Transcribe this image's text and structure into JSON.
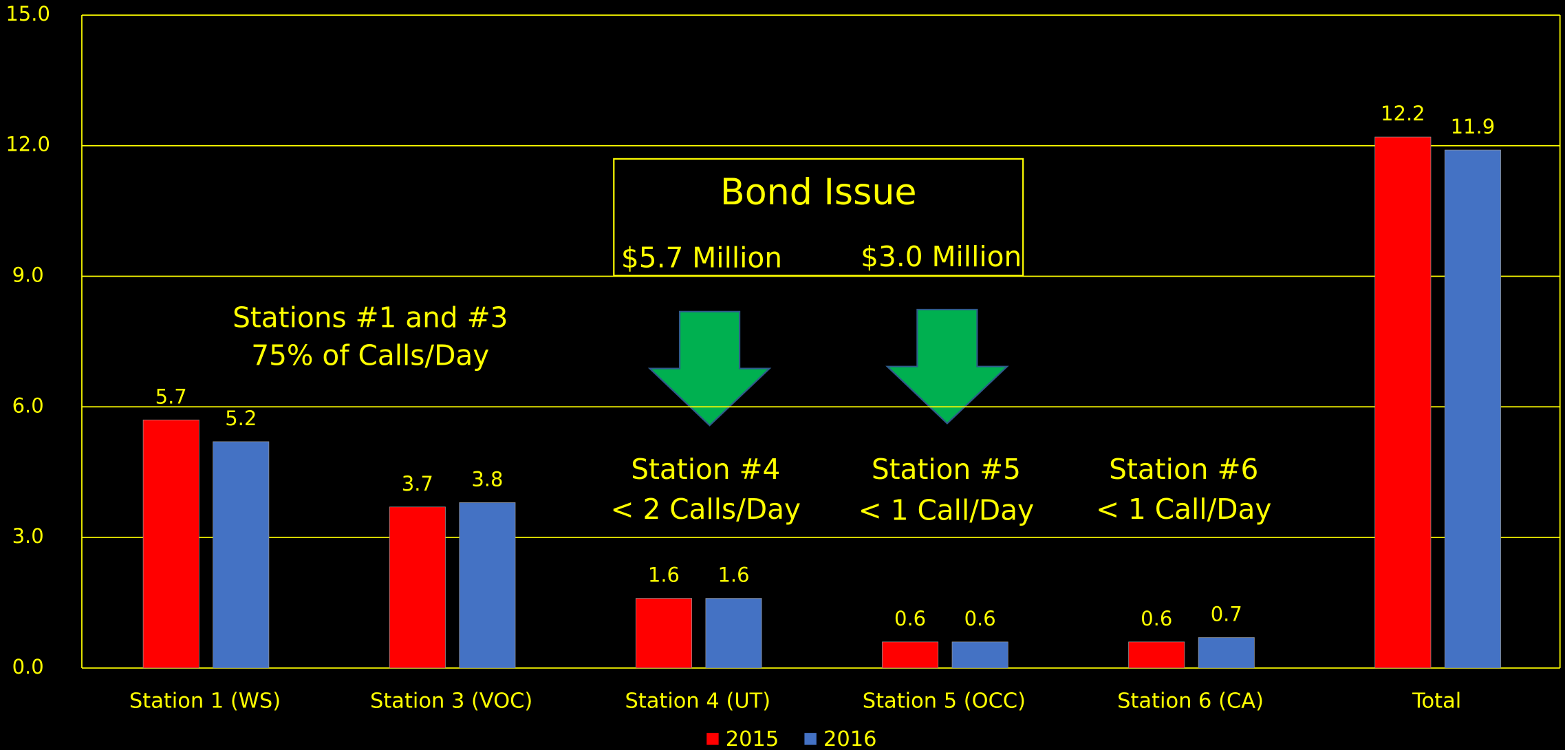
{
  "chart_data": {
    "type": "bar",
    "categories": [
      "Station 1 (WS)",
      "Station 3 (VOC)",
      "Station 4 (UT)",
      "Station 5 (OCC)",
      "Station 6 (CA)",
      "Total"
    ],
    "series": [
      {
        "name": "2015",
        "color": "#ff0000",
        "values": [
          5.7,
          3.7,
          1.6,
          0.6,
          0.6,
          12.2
        ]
      },
      {
        "name": "2016",
        "color": "#4472c4",
        "values": [
          5.2,
          3.8,
          1.6,
          0.6,
          0.7,
          11.9
        ]
      }
    ],
    "ylim": [
      0,
      15
    ],
    "yticks": [
      {
        "value": 0,
        "label": "0.0"
      },
      {
        "value": 3,
        "label": "3.0"
      },
      {
        "value": 6,
        "label": "6.0"
      },
      {
        "value": 9,
        "label": "9.0"
      },
      {
        "value": 12,
        "label": "12.0"
      },
      {
        "value": 15,
        "label": "15.0"
      }
    ],
    "grid": true,
    "legend": "bottom",
    "annotations": [
      "Bond Issue",
      "$5.7 Million",
      "$3.0 Million",
      "Stations #1 and #3",
      "75% of Calls/Day",
      "Station #4",
      "< 2 Calls/Day",
      "Station #5",
      "< 1 Call/Day",
      "Station #6",
      "< 1 Call/Day"
    ]
  }
}
